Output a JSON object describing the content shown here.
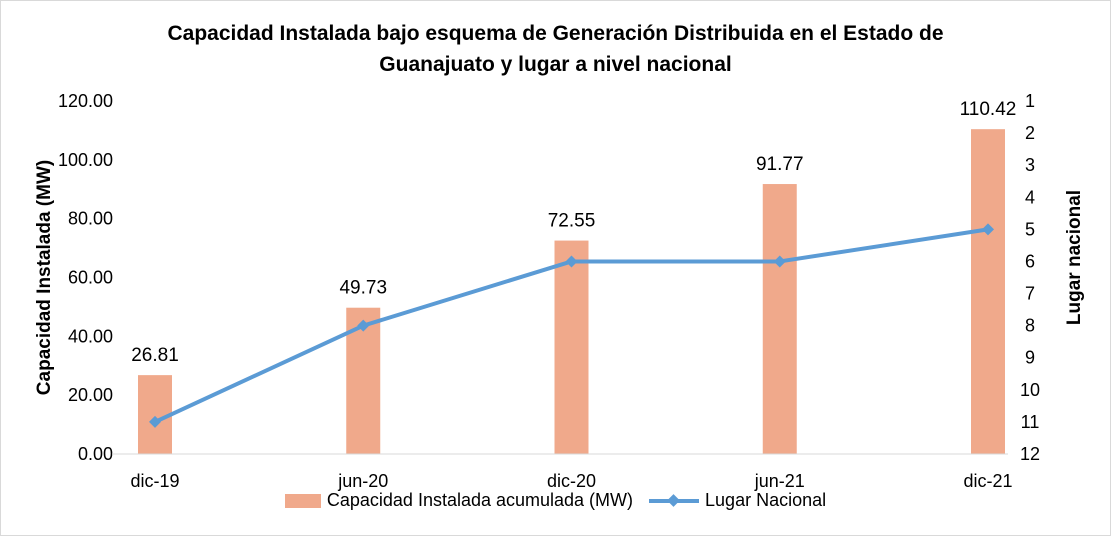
{
  "chart_data": {
    "type": "bar",
    "title_lines": [
      "Capacidad Instalada bajo esquema de Generación Distribuida en el Estado de",
      "Guanajuato y lugar a nivel nacional"
    ],
    "categories": [
      "dic-19",
      "jun-20",
      "dic-20",
      "jun-21",
      "dic-21"
    ],
    "series": [
      {
        "name": "Capacidad Instalada acumulada (MW)",
        "type": "bar",
        "axis": "left",
        "values": [
          26.81,
          49.73,
          72.55,
          91.77,
          110.42
        ],
        "labels": [
          "26.81",
          "49.73",
          "72.55",
          "91.77",
          "110.42"
        ],
        "color": "#f0a98b"
      },
      {
        "name": "Lugar Nacional",
        "type": "line",
        "axis": "right",
        "values": [
          11,
          8,
          6,
          6,
          5
        ],
        "color": "#5b9bd5"
      }
    ],
    "ylabel": "Capacidad Instalada (MW)",
    "ylim": [
      0,
      120
    ],
    "yticks": [
      "0.00",
      "20.00",
      "40.00",
      "60.00",
      "80.00",
      "100.00",
      "120.00"
    ],
    "y2label": "Lugar nacional",
    "y2lim": [
      1,
      12
    ],
    "y2_reversed": true,
    "y2ticks": [
      "1",
      "2",
      "3",
      "4",
      "5",
      "6",
      "7",
      "8",
      "9",
      "10",
      "11",
      "12"
    ],
    "grid": false,
    "legend_position": "bottom"
  }
}
